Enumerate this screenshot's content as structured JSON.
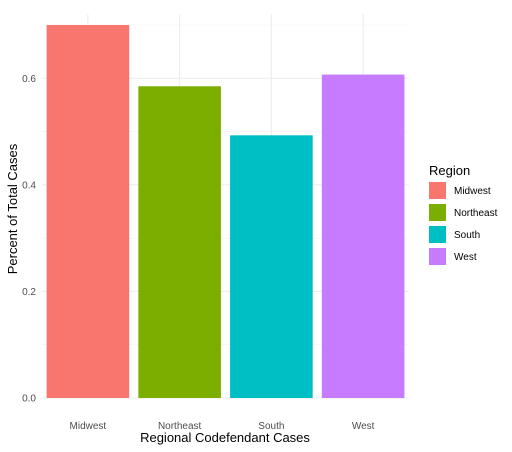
{
  "chart_data": {
    "type": "bar",
    "title": "",
    "xlabel": "Regional Codefendant Cases",
    "ylabel": "Percent of Total Cases",
    "categories": [
      "Midwest",
      "Northeast",
      "South",
      "West"
    ],
    "values": [
      0.7,
      0.585,
      0.493,
      0.607
    ],
    "colors": [
      "#F8766D",
      "#7CAE00",
      "#00BFC4",
      "#C77CFF"
    ],
    "ylim": [
      0,
      0.7
    ],
    "yticks": [
      0.0,
      0.2,
      0.4,
      0.6
    ],
    "ytick_labels": [
      "0.0",
      "0.2",
      "0.4",
      "0.6"
    ],
    "grid": true,
    "legend": {
      "title": "Region",
      "position": "right",
      "entries": [
        "Midwest",
        "Northeast",
        "South",
        "West"
      ]
    }
  }
}
